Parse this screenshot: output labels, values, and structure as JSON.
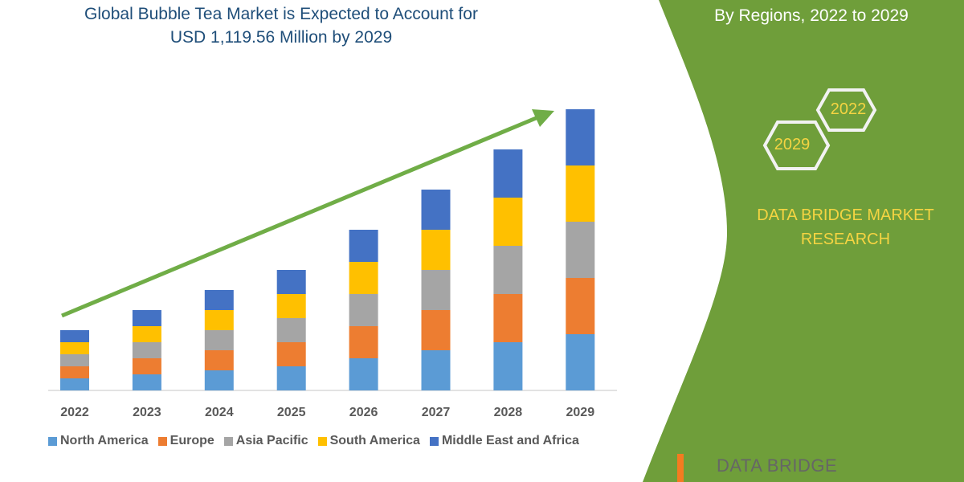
{
  "title_line1": "Global Bubble Tea Market is Expected to Account for",
  "title_line2": "USD 1,119.56 Million by 2029",
  "subtitle": "By Regions, 2022 to 2029",
  "hexagons": {
    "start": "2022",
    "end": "2029"
  },
  "brand": {
    "line1": "DATA BRIDGE MARKET",
    "line2": "RESEARCH",
    "logo_text": "DATA BRIDGE"
  },
  "colors": {
    "panel": "#6f9e3a",
    "arrow": "#70ad47",
    "title": "#1f4e79",
    "hex_text": "#f5d442"
  },
  "chart_data": {
    "type": "bar",
    "stacked": true,
    "title": "Global Bubble Tea Market is Expected to Account for USD 1,119.56 Million by 2029",
    "categories": [
      "2022",
      "2023",
      "2024",
      "2025",
      "2026",
      "2027",
      "2028",
      "2029"
    ],
    "series": [
      {
        "name": "North America",
        "color": "#5b9bd5",
        "values": [
          15,
          20,
          25,
          30,
          40,
          50,
          60,
          70
        ]
      },
      {
        "name": "Europe",
        "color": "#ed7d31",
        "values": [
          15,
          20,
          25,
          30,
          40,
          50,
          60,
          70
        ]
      },
      {
        "name": "Asia Pacific",
        "color": "#a5a5a5",
        "values": [
          15,
          20,
          25,
          30,
          40,
          50,
          60,
          70
        ]
      },
      {
        "name": "South America",
        "color": "#ffc000",
        "values": [
          15,
          20,
          25,
          30,
          40,
          50,
          60,
          70
        ]
      },
      {
        "name": "Middle East and Africa",
        "color": "#4472c4",
        "values": [
          15,
          20,
          25,
          30,
          40,
          50,
          60,
          70
        ]
      }
    ],
    "y_axis_shown": false,
    "grid": false,
    "legend_position": "bottom",
    "trend_arrow": true
  }
}
